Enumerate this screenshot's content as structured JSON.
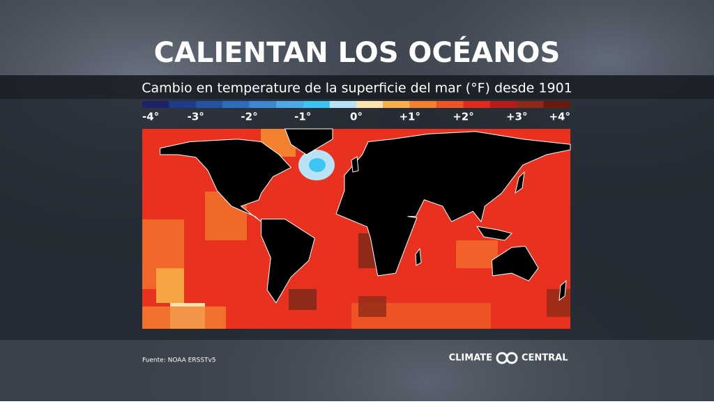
{
  "title": "CALIENTAN LOS OCÉANOS",
  "subtitle": "Cambio en temperature de la superficie del mar (°F) desde 1901",
  "legend": {
    "lim": [
      -4,
      4
    ],
    "colors": [
      "#1b2466",
      "#1e3a8a",
      "#2452a3",
      "#2d6bbd",
      "#3d88d3",
      "#4ea7e6",
      "#3cc4f2",
      "#b9e3f5",
      "#fbe3b0",
      "#f7b04a",
      "#f3802e",
      "#ee5426",
      "#e02a1c",
      "#b81c16",
      "#8e2a17",
      "#6b1a12"
    ],
    "ticks": [
      {
        "value": -4,
        "label": "-4°"
      },
      {
        "value": -3,
        "label": "-3°"
      },
      {
        "value": -2,
        "label": "-2°"
      },
      {
        "value": -1,
        "label": "-1°"
      },
      {
        "value": 0,
        "label": "0°"
      },
      {
        "value": 1,
        "label": "+1°"
      },
      {
        "value": 2,
        "label": "+2°"
      },
      {
        "value": 3,
        "label": "+3°"
      },
      {
        "value": 4,
        "label": "+4°"
      }
    ]
  },
  "source": "Fuente: NOAA ERSSTv5",
  "logo": {
    "left": "CLIMATE",
    "right": "CENTRAL"
  }
}
